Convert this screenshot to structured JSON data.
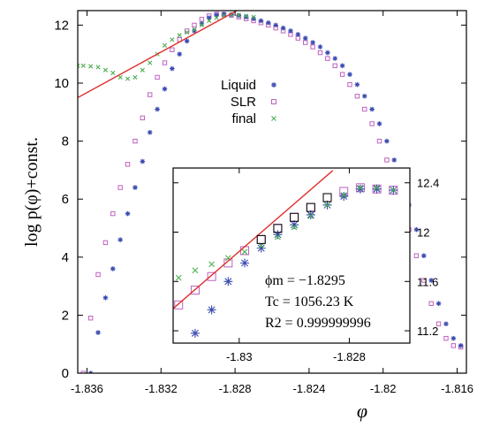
{
  "chart_data": [
    {
      "type": "scatter",
      "xlabel": "φ",
      "ylabel": "log p(φ)+const.",
      "xlim": [
        -1.8365,
        -1.8155
      ],
      "ylim": [
        0,
        12.5
      ],
      "xticks": [
        -1.836,
        -1.832,
        -1.828,
        -1.824,
        -1.82,
        -1.816
      ],
      "xtick_labels": [
        "-1.836",
        "-1.832",
        "-1.828",
        "-1.824",
        "-1.82",
        "-1.816"
      ],
      "yticks": [
        0,
        2,
        4,
        6,
        8,
        10,
        12
      ],
      "ytick_labels": [
        "0",
        "2",
        "4",
        "6",
        "8",
        "10",
        "12"
      ],
      "legend": {
        "position": "center-right",
        "entries": [
          "Liquid",
          "SLR",
          "final"
        ]
      },
      "series": [
        {
          "name": "Liquid",
          "marker": "asterisk",
          "color": "#3a4bb0",
          "x": [
            -1.8358,
            -1.8354,
            -1.835,
            -1.8346,
            -1.8342,
            -1.8338,
            -1.8334,
            -1.833,
            -1.8326,
            -1.8322,
            -1.8318,
            -1.8314,
            -1.831,
            -1.8306,
            -1.8302,
            -1.8298,
            -1.8294,
            -1.829,
            -1.8286,
            -1.8282,
            -1.8278,
            -1.8274,
            -1.827,
            -1.8266,
            -1.8262,
            -1.8258,
            -1.8254,
            -1.825,
            -1.8246,
            -1.8242,
            -1.8238,
            -1.8234,
            -1.823,
            -1.8226,
            -1.8222,
            -1.8218,
            -1.8214,
            -1.821,
            -1.8206,
            -1.8202,
            -1.8198,
            -1.8194,
            -1.819,
            -1.8186,
            -1.8182,
            -1.8178,
            -1.8174,
            -1.817,
            -1.8166,
            -1.8162,
            -1.8158
          ],
          "y": [
            0.0,
            1.4,
            2.6,
            3.6,
            4.6,
            5.5,
            6.4,
            7.3,
            8.3,
            9.1,
            9.8,
            10.5,
            11.0,
            11.45,
            11.8,
            12.05,
            12.25,
            12.35,
            12.38,
            12.36,
            12.33,
            12.28,
            12.22,
            12.15,
            12.08,
            12.0,
            11.9,
            11.8,
            11.68,
            11.55,
            11.4,
            11.25,
            11.05,
            10.85,
            10.6,
            10.3,
            9.95,
            9.55,
            9.1,
            8.6,
            8.0,
            7.35,
            6.6,
            5.8,
            4.95,
            4.05,
            3.2,
            2.4,
            1.7,
            1.2,
            0.95
          ]
        },
        {
          "name": "SLR",
          "marker": "square",
          "color": "#c060c0",
          "x": [
            -1.8362,
            -1.8358,
            -1.8354,
            -1.835,
            -1.8346,
            -1.8342,
            -1.8338,
            -1.8334,
            -1.833,
            -1.8326,
            -1.8322,
            -1.8318,
            -1.8314,
            -1.831,
            -1.8306,
            -1.8302,
            -1.8298,
            -1.8294,
            -1.829,
            -1.8286,
            -1.8282,
            -1.8278,
            -1.8274,
            -1.827,
            -1.8266,
            -1.8262,
            -1.8258,
            -1.8254,
            -1.825,
            -1.8246,
            -1.8242,
            -1.8238,
            -1.8234,
            -1.823,
            -1.8226,
            -1.8222,
            -1.8218,
            -1.8214,
            -1.821,
            -1.8206,
            -1.8202,
            -1.8198,
            -1.8194,
            -1.819,
            -1.8186,
            -1.8182,
            -1.8178,
            -1.8174,
            -1.817,
            -1.8166,
            -1.8162,
            -1.8158
          ],
          "y": [
            0.0,
            1.9,
            3.4,
            4.5,
            5.5,
            6.4,
            7.2,
            8.0,
            8.8,
            9.6,
            10.2,
            10.7,
            11.15,
            11.5,
            11.8,
            12.0,
            12.2,
            12.32,
            12.38,
            12.37,
            12.34,
            12.28,
            12.22,
            12.15,
            12.08,
            12.0,
            11.9,
            11.8,
            11.68,
            11.55,
            11.4,
            11.25,
            11.05,
            10.85,
            10.6,
            10.3,
            9.95,
            9.55,
            9.1,
            8.6,
            8.0,
            7.35,
            6.6,
            5.8,
            4.95,
            4.05,
            3.2,
            2.4,
            1.7,
            1.2,
            0.95,
            0.9
          ]
        },
        {
          "name": "final",
          "marker": "cross",
          "color": "#4caf50",
          "x": [
            -1.8365,
            -1.8362,
            -1.8358,
            -1.8354,
            -1.835,
            -1.8346,
            -1.8342,
            -1.8338,
            -1.8334,
            -1.833,
            -1.8326,
            -1.8322,
            -1.8318,
            -1.8314,
            -1.831,
            -1.8306,
            -1.8302,
            -1.8298,
            -1.8294,
            -1.829,
            -1.8286,
            -1.8282,
            -1.8278,
            -1.8274,
            -1.827
          ],
          "y": [
            10.6,
            10.6,
            10.58,
            10.55,
            10.45,
            10.35,
            10.2,
            10.15,
            10.2,
            10.45,
            10.7,
            11.0,
            11.3,
            11.5,
            11.65,
            11.75,
            11.85,
            12.0,
            12.15,
            12.25,
            12.33,
            12.36,
            12.35,
            12.32,
            12.28
          ]
        },
        {
          "name": "fit",
          "marker": "line",
          "color": "#e03030",
          "x": [
            -1.8365,
            -1.8279
          ],
          "y": [
            9.5,
            12.5
          ]
        }
      ]
    },
    {
      "type": "scatter",
      "inset": true,
      "xlim": [
        -1.8312,
        -1.8269
      ],
      "ylim": [
        11.1,
        12.52
      ],
      "xticks": [
        -1.83,
        -1.828
      ],
      "xtick_labels": [
        "-1.83",
        "-1.828"
      ],
      "yticks": [
        11.2,
        11.6,
        12.0,
        12.4
      ],
      "ytick_labels": [
        "11.2",
        "11.6",
        "12",
        "12.4"
      ],
      "annotations": {
        "phi_m": "ϕm = −1.8295",
        "tc": "Tc = 1056.23 K",
        "r2": "R2 = 0.999999996"
      },
      "series": [
        {
          "name": "Liquid",
          "marker": "asterisk",
          "color": "#3a4bb0",
          "x": [
            -1.8308,
            -1.8305,
            -1.8302,
            -1.8299,
            -1.8296,
            -1.8293,
            -1.829,
            -1.8287,
            -1.8284,
            -1.8281,
            -1.8278,
            -1.8275,
            -1.8272
          ],
          "y": [
            11.18,
            11.37,
            11.6,
            11.75,
            11.87,
            11.98,
            12.06,
            12.14,
            12.22,
            12.29,
            12.35,
            12.35,
            12.34
          ]
        },
        {
          "name": "SLR",
          "marker": "square",
          "color": "#c060c0",
          "x": [
            -1.8311,
            -1.8308,
            -1.8305,
            -1.8302,
            -1.8299,
            -1.8296,
            -1.8293,
            -1.829,
            -1.8287,
            -1.8284,
            -1.8281,
            -1.8278,
            -1.8275,
            -1.8272
          ],
          "y": [
            11.41,
            11.53,
            11.64,
            11.75,
            11.85,
            11.94,
            12.03,
            12.12,
            12.2,
            12.28,
            12.33,
            12.36,
            12.35,
            12.34
          ]
        },
        {
          "name": "final",
          "marker": "cross",
          "color": "#4caf50",
          "x": [
            -1.8311,
            -1.8308,
            -1.8305,
            -1.8302,
            -1.8299,
            -1.8296,
            -1.8293,
            -1.829,
            -1.8287,
            -1.8284,
            -1.8281,
            -1.8278,
            -1.8275,
            -1.8272
          ],
          "y": [
            11.63,
            11.69,
            11.74,
            11.79,
            11.84,
            11.89,
            11.96,
            12.04,
            12.13,
            12.22,
            12.3,
            12.36,
            12.36,
            12.34
          ]
        },
        {
          "name": "fit",
          "marker": "line",
          "color": "#e03030",
          "x": [
            -1.8312,
            -1.8283
          ],
          "y": [
            11.38,
            12.5
          ]
        }
      ]
    }
  ]
}
